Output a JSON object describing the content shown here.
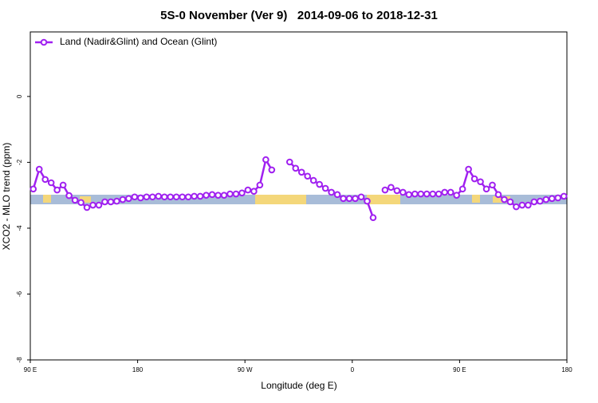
{
  "chart_data": {
    "type": "line",
    "title": "5S-0 November (Ver 9)   2014-09-06 to 2018-12-31",
    "xlabel": "Longitude (deg E)",
    "ylabel": "XCO2 - MLO trend (ppm)",
    "x": [
      92.5,
      97.5,
      102.5,
      107.5,
      112.5,
      117.5,
      122.5,
      127.5,
      132.5,
      137.5,
      142.5,
      147.5,
      152.5,
      157.5,
      162.5,
      167.5,
      172.5,
      177.5,
      182.5,
      187.5,
      192.5,
      197.5,
      202.5,
      207.5,
      212.5,
      217.5,
      222.5,
      227.5,
      232.5,
      237.5,
      242.5,
      247.5,
      252.5,
      257.5,
      262.5,
      267.5,
      272.5,
      277.5,
      282.5,
      287.5,
      292.5,
      297.5,
      302.5,
      307.5,
      312.5,
      317.5,
      322.5,
      327.5,
      332.5,
      337.5,
      342.5,
      347.5,
      352.5,
      357.5,
      362.5,
      367.5,
      372.5,
      377.5,
      382.5,
      387.5,
      392.5,
      397.5,
      402.5,
      407.5,
      412.5,
      417.5,
      422.5,
      427.5,
      432.5,
      437.5,
      442.5,
      447.5,
      452.5,
      457.5,
      462.5,
      467.5,
      472.5,
      477.5,
      482.5,
      487.5,
      492.5,
      497.5,
      502.5,
      507.5,
      512.5,
      517.5,
      522.5,
      527.5,
      532.5,
      537.5
    ],
    "xlim": [
      90,
      540
    ],
    "xticks": [
      {
        "value": 90,
        "label": "90 E"
      },
      180,
      {
        "value": 270,
        "label": "90 W"
      },
      {
        "value": 360,
        "label": "0"
      },
      {
        "value": 450,
        "label": "90 E"
      },
      {
        "value": 540,
        "label": "180"
      }
    ],
    "ylim": [
      -8,
      1.96
    ],
    "yticks": [
      0,
      -2,
      -4,
      -6,
      -8
    ],
    "legend": "upper left",
    "series": [
      {
        "name": "Land (Nadir&Glint) and Ocean (Glint)",
        "color": "#a020f0",
        "values": [
          -2.81,
          -2.21,
          -2.52,
          -2.62,
          -2.84,
          -2.69,
          -3.01,
          -3.15,
          -3.22,
          -3.37,
          -3.3,
          -3.3,
          -3.2,
          -3.2,
          -3.18,
          -3.13,
          -3.1,
          -3.05,
          -3.08,
          -3.05,
          -3.05,
          -3.03,
          -3.05,
          -3.05,
          -3.05,
          -3.05,
          -3.05,
          -3.03,
          -3.03,
          -3.0,
          -2.98,
          -3.0,
          -3.0,
          -2.96,
          -2.96,
          -2.93,
          -2.84,
          -2.88,
          -2.69,
          -1.92,
          -2.23,
          null,
          null,
          -1.99,
          -2.18,
          -2.3,
          -2.42,
          -2.55,
          -2.67,
          -2.79,
          -2.91,
          -2.98,
          -3.1,
          -3.1,
          -3.1,
          -3.05,
          -3.18,
          -3.68,
          null,
          -2.84,
          -2.76,
          -2.86,
          -2.91,
          -2.98,
          -2.96,
          -2.96,
          -2.96,
          -2.96,
          -2.96,
          -2.91,
          -2.91,
          -3.0,
          -2.81,
          -2.21,
          -2.5,
          -2.59,
          -2.81,
          -2.69,
          -2.98,
          -3.13,
          -3.2,
          -3.35,
          -3.3,
          -3.3,
          -3.2,
          -3.18,
          -3.13,
          -3.1,
          -3.08,
          -3.03
        ]
      }
    ]
  }
}
